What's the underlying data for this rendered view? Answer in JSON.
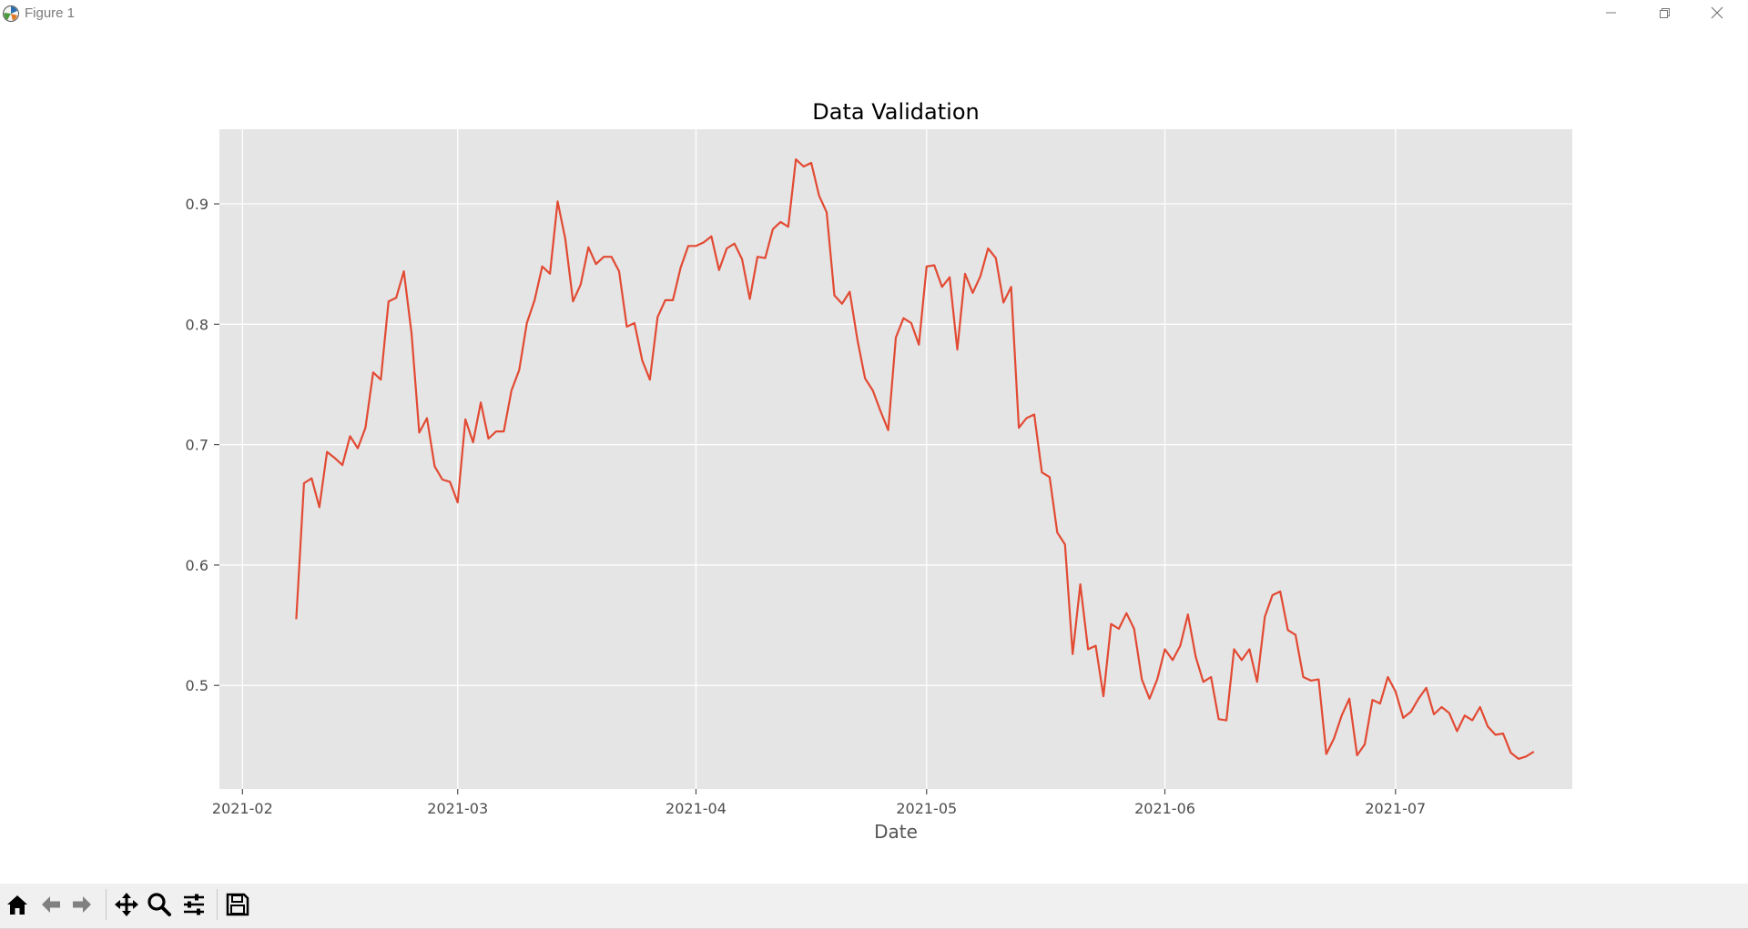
{
  "window": {
    "title": "Figure 1",
    "icon": "matplotlib-logo-icon",
    "controls": [
      "minimize-icon",
      "maximize-icon",
      "close-icon"
    ]
  },
  "toolbar": {
    "buttons": [
      "home-icon",
      "back-arrow-icon",
      "forward-arrow-icon",
      "pan-icon",
      "zoom-icon",
      "configure-subplots-icon",
      "save-icon"
    ]
  },
  "colors": {
    "axes_background": "#e5e5e5",
    "grid": "#ffffff",
    "line": "#e24a33",
    "text": "#4d4d4d"
  },
  "chart_data": {
    "type": "line",
    "title": "Data Validation",
    "xlabel": "Date",
    "ylabel": "",
    "grid": true,
    "xlim": [
      "2021-01-29",
      "2021-07-24"
    ],
    "ylim": [
      0.414,
      0.962
    ],
    "x_ticks": [
      "2021-02",
      "2021-03",
      "2021-04",
      "2021-05",
      "2021-06",
      "2021-07"
    ],
    "y_ticks": [
      "0.5",
      "0.6",
      "0.7",
      "0.8",
      "0.9"
    ],
    "x_start": "2021-02-08",
    "series": [
      {
        "color": "#e24a33",
        "values": [
          0.555,
          0.668,
          0.672,
          0.648,
          0.694,
          0.689,
          0.683,
          0.707,
          0.697,
          0.714,
          0.76,
          0.754,
          0.819,
          0.822,
          0.844,
          0.792,
          0.71,
          0.722,
          0.682,
          0.671,
          0.669,
          0.652,
          0.721,
          0.702,
          0.735,
          0.705,
          0.711,
          0.711,
          0.745,
          0.762,
          0.801,
          0.82,
          0.848,
          0.842,
          0.902,
          0.871,
          0.819,
          0.833,
          0.864,
          0.85,
          0.856,
          0.856,
          0.844,
          0.798,
          0.801,
          0.77,
          0.754,
          0.806,
          0.82,
          0.82,
          0.847,
          0.865,
          0.865,
          0.868,
          0.873,
          0.845,
          0.863,
          0.867,
          0.854,
          0.821,
          0.856,
          0.855,
          0.879,
          0.885,
          0.881,
          0.937,
          0.931,
          0.934,
          0.907,
          0.893,
          0.824,
          0.817,
          0.827,
          0.787,
          0.755,
          0.745,
          0.728,
          0.712,
          0.789,
          0.805,
          0.801,
          0.783,
          0.848,
          0.849,
          0.831,
          0.839,
          0.779,
          0.842,
          0.826,
          0.84,
          0.863,
          0.855,
          0.818,
          0.831,
          0.714,
          0.722,
          0.725,
          0.677,
          0.673,
          0.627,
          0.617,
          0.526,
          0.584,
          0.53,
          0.533,
          0.491,
          0.551,
          0.547,
          0.56,
          0.547,
          0.505,
          0.489,
          0.505,
          0.53,
          0.521,
          0.533,
          0.559,
          0.524,
          0.503,
          0.507,
          0.472,
          0.471,
          0.53,
          0.521,
          0.53,
          0.503,
          0.557,
          0.575,
          0.578,
          0.546,
          0.542,
          0.507,
          0.504,
          0.505,
          0.443,
          0.456,
          0.475,
          0.489,
          0.442,
          0.451,
          0.488,
          0.485,
          0.507,
          0.495,
          0.473,
          0.478,
          0.489,
          0.498,
          0.476,
          0.482,
          0.477,
          0.462,
          0.475,
          0.471,
          0.482,
          0.466,
          0.459,
          0.46,
          0.444,
          0.439,
          0.441,
          0.445
        ]
      }
    ]
  }
}
